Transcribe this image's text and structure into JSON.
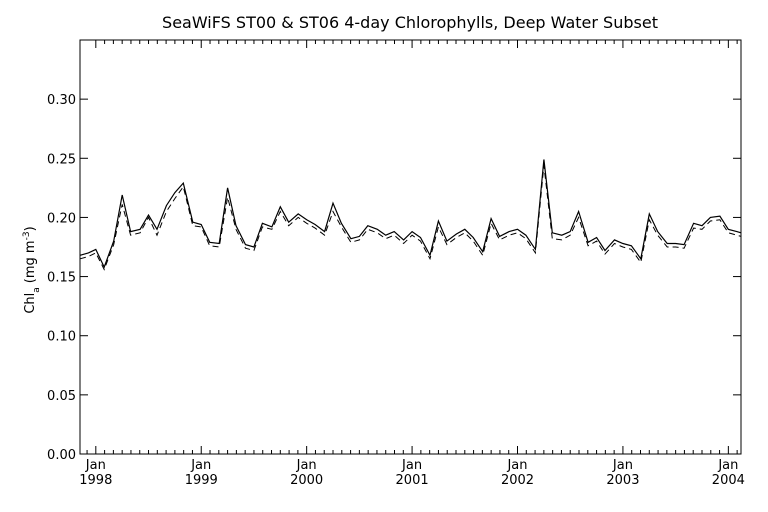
{
  "chart_data": {
    "type": "line",
    "title": "SeaWiFS ST00 & ST06 4-day Chlorophylls, Deep Water Subset",
    "ylabel": {
      "base": "Chl",
      "subscript": "a",
      "unit": "(mg m",
      "unit_sup": "-3",
      "unit_close": ")"
    },
    "xlim": [
      1997.85,
      2004.12
    ],
    "ylim": [
      0.0,
      0.35
    ],
    "y_ticks": [
      {
        "value": 0.0,
        "label": "0.00"
      },
      {
        "value": 0.05,
        "label": "0.05"
      },
      {
        "value": 0.1,
        "label": "0.10"
      },
      {
        "value": 0.15,
        "label": "0.15"
      },
      {
        "value": 0.2,
        "label": "0.20"
      },
      {
        "value": 0.25,
        "label": "0.25"
      },
      {
        "value": 0.3,
        "label": "0.30"
      }
    ],
    "x_ticks": [
      {
        "value": 1998.0,
        "month": "Jan",
        "year": "1998"
      },
      {
        "value": 1999.0,
        "month": "Jan",
        "year": "1999"
      },
      {
        "value": 2000.0,
        "month": "Jan",
        "year": "2000"
      },
      {
        "value": 2001.0,
        "month": "Jan",
        "year": "2001"
      },
      {
        "value": 2002.0,
        "month": "Jan",
        "year": "2002"
      },
      {
        "value": 2003.0,
        "month": "Jan",
        "year": "2003"
      },
      {
        "value": 2004.0,
        "month": "Jan",
        "year": "2004"
      }
    ],
    "series": [
      {
        "style": "solid",
        "x": [
          1997.85,
          1997.93,
          1998.0,
          1998.08,
          1998.17,
          1998.25,
          1998.33,
          1998.42,
          1998.5,
          1998.58,
          1998.67,
          1998.75,
          1998.83,
          1998.92,
          1999.0,
          1999.08,
          1999.17,
          1999.25,
          1999.33,
          1999.42,
          1999.5,
          1999.58,
          1999.67,
          1999.75,
          1999.83,
          1999.92,
          2000.0,
          2000.08,
          2000.17,
          2000.25,
          2000.33,
          2000.42,
          2000.5,
          2000.58,
          2000.67,
          2000.75,
          2000.83,
          2000.92,
          2001.0,
          2001.08,
          2001.17,
          2001.25,
          2001.33,
          2001.42,
          2001.5,
          2001.58,
          2001.67,
          2001.75,
          2001.83,
          2001.92,
          2002.0,
          2002.08,
          2002.17,
          2002.25,
          2002.33,
          2002.42,
          2002.5,
          2002.58,
          2002.67,
          2002.75,
          2002.83,
          2002.92,
          2003.0,
          2003.08,
          2003.17,
          2003.25,
          2003.33,
          2003.42,
          2003.5,
          2003.58,
          2003.67,
          2003.75,
          2003.83,
          2003.92,
          2004.0,
          2004.08,
          2004.12
        ],
        "y": [
          0.168,
          0.17,
          0.173,
          0.158,
          0.18,
          0.219,
          0.188,
          0.19,
          0.202,
          0.19,
          0.21,
          0.221,
          0.229,
          0.196,
          0.194,
          0.179,
          0.178,
          0.225,
          0.193,
          0.177,
          0.175,
          0.195,
          0.192,
          0.209,
          0.196,
          0.203,
          0.198,
          0.194,
          0.188,
          0.212,
          0.195,
          0.182,
          0.184,
          0.193,
          0.19,
          0.185,
          0.188,
          0.181,
          0.188,
          0.183,
          0.168,
          0.197,
          0.18,
          0.186,
          0.19,
          0.183,
          0.171,
          0.199,
          0.184,
          0.188,
          0.19,
          0.185,
          0.173,
          0.249,
          0.187,
          0.185,
          0.188,
          0.205,
          0.179,
          0.183,
          0.172,
          0.181,
          0.178,
          0.176,
          0.165,
          0.203,
          0.188,
          0.178,
          0.178,
          0.177,
          0.195,
          0.193,
          0.2,
          0.201,
          0.19,
          0.188,
          0.187
        ]
      },
      {
        "style": "dashed",
        "x": [
          1997.85,
          1997.93,
          1998.0,
          1998.08,
          1998.17,
          1998.25,
          1998.33,
          1998.42,
          1998.5,
          1998.58,
          1998.67,
          1998.75,
          1998.83,
          1998.92,
          1999.0,
          1999.08,
          1999.17,
          1999.25,
          1999.33,
          1999.42,
          1999.5,
          1999.58,
          1999.67,
          1999.75,
          1999.83,
          1999.92,
          2000.0,
          2000.08,
          2000.17,
          2000.25,
          2000.33,
          2000.42,
          2000.5,
          2000.58,
          2000.67,
          2000.75,
          2000.83,
          2000.92,
          2001.0,
          2001.08,
          2001.17,
          2001.25,
          2001.33,
          2001.42,
          2001.5,
          2001.58,
          2001.67,
          2001.75,
          2001.83,
          2001.92,
          2002.0,
          2002.08,
          2002.17,
          2002.25,
          2002.33,
          2002.42,
          2002.5,
          2002.58,
          2002.67,
          2002.75,
          2002.83,
          2002.92,
          2003.0,
          2003.08,
          2003.17,
          2003.25,
          2003.33,
          2003.42,
          2003.5,
          2003.58,
          2003.67,
          2003.75,
          2003.83,
          2003.92,
          2004.0,
          2004.08,
          2004.12
        ],
        "y": [
          0.165,
          0.167,
          0.17,
          0.156,
          0.177,
          0.211,
          0.185,
          0.187,
          0.2,
          0.185,
          0.205,
          0.216,
          0.226,
          0.193,
          0.192,
          0.176,
          0.175,
          0.217,
          0.19,
          0.174,
          0.172,
          0.192,
          0.19,
          0.205,
          0.193,
          0.2,
          0.195,
          0.191,
          0.185,
          0.205,
          0.192,
          0.179,
          0.181,
          0.19,
          0.187,
          0.182,
          0.185,
          0.178,
          0.185,
          0.18,
          0.165,
          0.192,
          0.177,
          0.183,
          0.187,
          0.18,
          0.168,
          0.195,
          0.181,
          0.185,
          0.187,
          0.182,
          0.17,
          0.244,
          0.182,
          0.181,
          0.185,
          0.2,
          0.176,
          0.18,
          0.169,
          0.178,
          0.175,
          0.173,
          0.162,
          0.198,
          0.185,
          0.175,
          0.175,
          0.174,
          0.191,
          0.19,
          0.197,
          0.198,
          0.187,
          0.185,
          0.184
        ]
      }
    ],
    "grid": false,
    "legend": "none"
  }
}
